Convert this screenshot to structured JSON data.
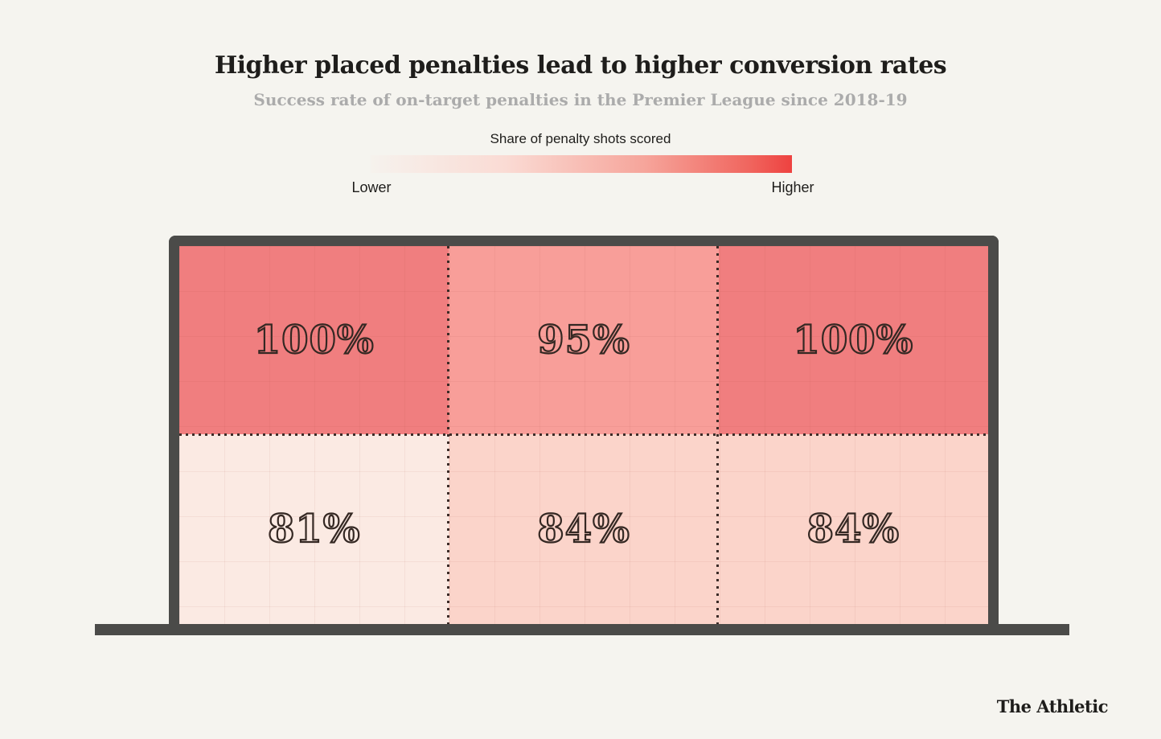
{
  "header": {
    "title": "Higher placed penalties lead to higher conversion rates",
    "subtitle": "Success rate of on-target penalties in the Premier League since 2018-19"
  },
  "legend": {
    "title": "Share of penalty shots scored",
    "low_label": "Lower",
    "high_label": "Higher",
    "gradient_start_color": "#F6F2ED",
    "gradient_end_color": "#EE4240"
  },
  "chart_data": {
    "type": "heatmap",
    "title": "Higher placed penalties lead to higher conversion rates",
    "subtitle": "Success rate of on-target penalties in the Premier League since 2018-19",
    "legend_title": "Share of penalty shots scored",
    "legend_range": [
      "Lower",
      "Higher"
    ],
    "shape": "football goal, 2 rows x 3 columns",
    "rows": [
      "top of goal",
      "bottom of goal"
    ],
    "columns": [
      "left",
      "centre",
      "right"
    ],
    "unit": "%",
    "series": [
      {
        "name": "top of goal",
        "values": [
          100,
          95,
          100
        ]
      },
      {
        "name": "bottom of goal",
        "values": [
          81,
          84,
          84
        ]
      }
    ],
    "cells": [
      {
        "row": "top",
        "column": "left",
        "label": "100%",
        "value": 100,
        "color": "#F07E7F"
      },
      {
        "row": "top",
        "column": "centre",
        "label": "95%",
        "value": 95,
        "color": "#F89E99"
      },
      {
        "row": "top",
        "column": "right",
        "label": "100%",
        "value": 100,
        "color": "#F07E7F"
      },
      {
        "row": "bottom",
        "column": "left",
        "label": "81%",
        "value": 81,
        "color": "#FBEAE3"
      },
      {
        "row": "bottom",
        "column": "centre",
        "label": "84%",
        "value": 84,
        "color": "#FBD4CA"
      },
      {
        "row": "bottom",
        "column": "right",
        "label": "84%",
        "value": 84,
        "color": "#FBD4CA"
      }
    ]
  },
  "branding": {
    "source_label": "The Athletic"
  },
  "colors": {
    "background": "#F5F4EF",
    "goal_frame": "#4B4B49",
    "title_text": "#1E1D1B",
    "subtitle_text": "#ABABAB",
    "value_text": "#342823",
    "divider_dots": "#3C2B27"
  }
}
